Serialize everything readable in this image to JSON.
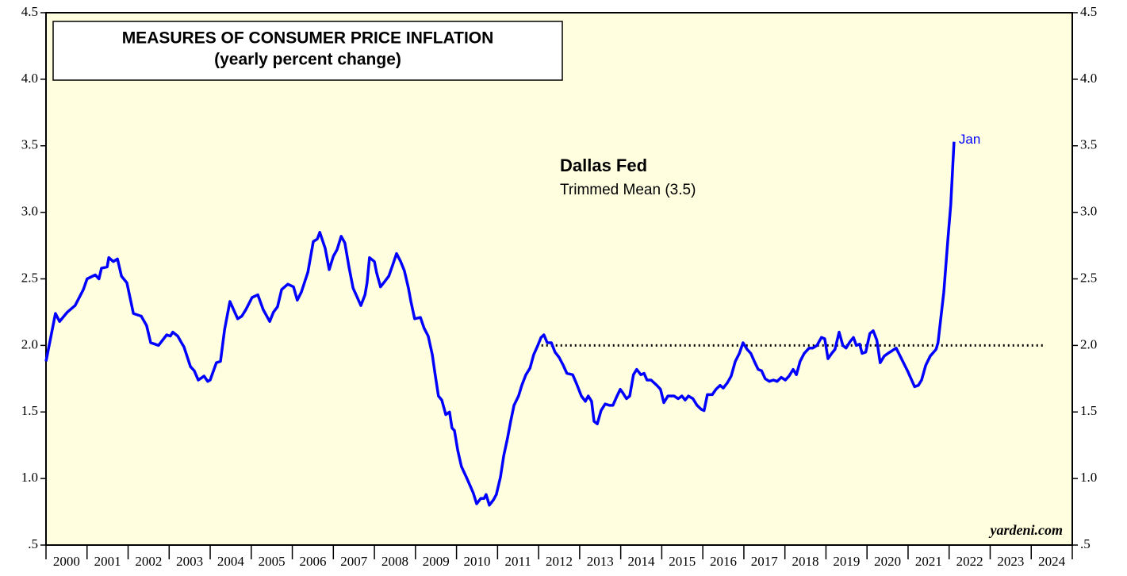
{
  "chart_data": {
    "type": "line",
    "title": "MEASURES OF CONSUMER PRICE INFLATION",
    "subtitle": "(yearly percent change)",
    "annotations": [
      "Dallas Fed",
      "Trimmed Mean (3.5)",
      "Jan",
      "yardeni.com"
    ],
    "color": "#0000ff",
    "background": "#ffffe0",
    "x": [
      2000.0,
      2000.23,
      2000.33,
      2000.52,
      2000.71,
      2000.91,
      2001.0,
      2001.2,
      2001.29,
      2001.35,
      2001.49,
      2001.53,
      2001.64,
      2001.74,
      2001.84,
      2001.97,
      2002.13,
      2002.32,
      2002.45,
      2002.55,
      2002.65,
      2002.74,
      2002.94,
      2003.03,
      2003.09,
      2003.21,
      2003.32,
      2003.36,
      2003.52,
      2003.61,
      2003.71,
      2003.85,
      2003.94,
      2004.0,
      2004.15,
      2004.25,
      2004.35,
      2004.48,
      2004.67,
      2004.77,
      2004.87,
      2005.02,
      2005.16,
      2005.29,
      2005.45,
      2005.54,
      2005.64,
      2005.74,
      2005.89,
      2006.03,
      2006.12,
      2006.22,
      2006.38,
      2006.51,
      2006.61,
      2006.67,
      2006.8,
      2006.9,
      2007.0,
      2007.09,
      2007.19,
      2007.28,
      2007.38,
      2007.48,
      2007.57,
      2007.67,
      2007.77,
      2007.82,
      2007.88,
      2008.0,
      2008.05,
      2008.15,
      2008.25,
      2008.35,
      2008.44,
      2008.54,
      2008.64,
      2008.73,
      2008.83,
      2008.89,
      2008.98,
      2009.12,
      2009.21,
      2009.31,
      2009.41,
      2009.47,
      2009.56,
      2009.64,
      2009.74,
      2009.83,
      2009.89,
      2009.95,
      2010.03,
      2010.12,
      2010.24,
      2010.34,
      2010.41,
      2010.49,
      2010.59,
      2010.67,
      2010.72,
      2010.8,
      2010.9,
      2010.97,
      2011.07,
      2011.15,
      2011.24,
      2011.32,
      2011.4,
      2011.51,
      2011.59,
      2011.69,
      2011.79,
      2011.88,
      2011.98,
      2012.06,
      2012.13,
      2012.21,
      2012.31,
      2012.4,
      2012.5,
      2012.6,
      2012.69,
      2012.83,
      2012.94,
      2013.04,
      2013.14,
      2013.21,
      2013.29,
      2013.35,
      2013.43,
      2013.52,
      2013.62,
      2013.73,
      2013.81,
      2013.91,
      2013.99,
      2014.06,
      2014.14,
      2014.22,
      2014.31,
      2014.39,
      2014.49,
      2014.57,
      2014.64,
      2014.74,
      2014.88,
      2014.97,
      2015.05,
      2015.15,
      2015.3,
      2015.4,
      2015.49,
      2015.57,
      2015.65,
      2015.76,
      2015.86,
      2015.96,
      2016.03,
      2016.11,
      2016.23,
      2016.32,
      2016.42,
      2016.5,
      2016.6,
      2016.69,
      2016.79,
      2016.89,
      2016.98,
      2017.08,
      2017.17,
      2017.27,
      2017.35,
      2017.43,
      2017.52,
      2017.62,
      2017.72,
      2017.81,
      2017.91,
      2018.01,
      2018.1,
      2018.2,
      2018.28,
      2018.37,
      2018.47,
      2018.59,
      2018.68,
      2018.78,
      2018.89,
      2018.97,
      2019.05,
      2019.14,
      2019.22,
      2019.32,
      2019.41,
      2019.49,
      2019.59,
      2019.67,
      2019.74,
      2019.82,
      2019.88,
      2019.97,
      2020.07,
      2020.15,
      2020.24,
      2020.32,
      2020.42,
      2020.51,
      2020.61,
      2020.71,
      2021.0,
      2021.16,
      2021.25,
      2021.33,
      2021.43,
      2021.54,
      2021.68,
      2021.73,
      2021.87,
      2021.97,
      2022.04,
      2022.12
    ],
    "values": [
      1.88,
      2.24,
      2.18,
      2.25,
      2.3,
      2.42,
      2.5,
      2.53,
      2.5,
      2.58,
      2.59,
      2.66,
      2.63,
      2.65,
      2.52,
      2.47,
      2.24,
      2.22,
      2.15,
      2.02,
      2.01,
      2.0,
      2.08,
      2.07,
      2.1,
      2.07,
      2.01,
      1.99,
      1.84,
      1.81,
      1.74,
      1.77,
      1.73,
      1.74,
      1.87,
      1.88,
      2.12,
      2.33,
      2.2,
      2.22,
      2.27,
      2.36,
      2.38,
      2.27,
      2.18,
      2.25,
      2.29,
      2.42,
      2.46,
      2.44,
      2.34,
      2.4,
      2.55,
      2.78,
      2.8,
      2.85,
      2.73,
      2.57,
      2.67,
      2.72,
      2.82,
      2.77,
      2.59,
      2.43,
      2.37,
      2.3,
      2.38,
      2.47,
      2.66,
      2.63,
      2.55,
      2.44,
      2.48,
      2.52,
      2.6,
      2.69,
      2.63,
      2.56,
      2.43,
      2.33,
      2.2,
      2.21,
      2.13,
      2.07,
      1.93,
      1.8,
      1.62,
      1.59,
      1.48,
      1.5,
      1.38,
      1.36,
      1.21,
      1.09,
      1.01,
      0.94,
      0.89,
      0.81,
      0.85,
      0.85,
      0.88,
      0.8,
      0.84,
      0.88,
      1.01,
      1.17,
      1.3,
      1.43,
      1.55,
      1.62,
      1.7,
      1.78,
      1.83,
      1.93,
      2.0,
      2.06,
      2.08,
      2.02,
      2.02,
      1.95,
      1.91,
      1.85,
      1.79,
      1.78,
      1.7,
      1.62,
      1.58,
      1.62,
      1.58,
      1.43,
      1.41,
      1.51,
      1.56,
      1.55,
      1.55,
      1.62,
      1.67,
      1.64,
      1.6,
      1.62,
      1.78,
      1.82,
      1.78,
      1.79,
      1.74,
      1.74,
      1.7,
      1.67,
      1.57,
      1.62,
      1.62,
      1.6,
      1.62,
      1.59,
      1.62,
      1.6,
      1.55,
      1.52,
      1.51,
      1.63,
      1.63,
      1.67,
      1.7,
      1.68,
      1.72,
      1.77,
      1.88,
      1.94,
      2.02,
      1.97,
      1.94,
      1.87,
      1.82,
      1.81,
      1.75,
      1.73,
      1.74,
      1.73,
      1.76,
      1.74,
      1.77,
      1.82,
      1.78,
      1.88,
      1.94,
      1.98,
      1.98,
      2.0,
      2.06,
      2.05,
      1.9,
      1.94,
      1.97,
      2.1,
      2.0,
      1.98,
      2.03,
      2.06,
      2.0,
      2.01,
      1.94,
      1.95,
      2.09,
      2.11,
      2.04,
      1.87,
      1.92,
      1.94,
      1.96,
      1.98,
      1.8,
      1.69,
      1.7,
      1.74,
      1.85,
      1.92,
      1.97,
      2.02,
      2.4,
      2.8,
      3.06,
      3.53
    ],
    "reference_line": {
      "y": 2,
      "x": [
        2012.07,
        2024.3
      ]
    },
    "xlim": [
      2000,
      2025
    ],
    "xticks": [
      2000,
      2001,
      2002,
      2003,
      2004,
      2005,
      2006,
      2007,
      2008,
      2009,
      2010,
      2011,
      2012,
      2013,
      2014,
      2015,
      2016,
      2017,
      2018,
      2019,
      2020,
      2021,
      2022,
      2023,
      2024
    ],
    "ylim": [
      0.5,
      4.5
    ],
    "yticks": [
      {
        "value": 0.5,
        "label": ".5"
      },
      {
        "value": 1,
        "label": "1.0"
      },
      1.5,
      {
        "value": 2,
        "label": "2.0"
      },
      2.5,
      {
        "value": 3,
        "label": "3.0"
      },
      3.5,
      {
        "value": 4,
        "label": "4.0"
      },
      4.5
    ]
  }
}
